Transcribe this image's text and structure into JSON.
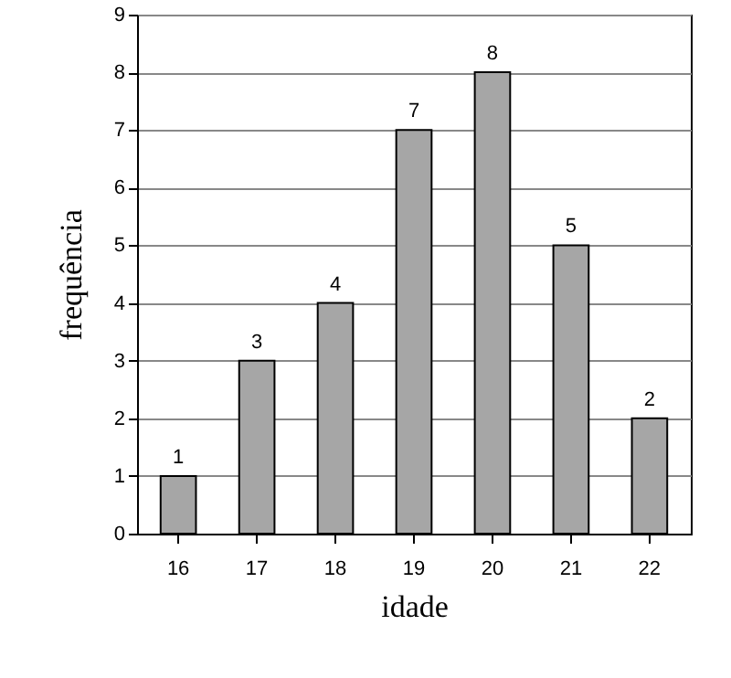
{
  "chart_data": {
    "type": "bar",
    "xlabel": "idade",
    "ylabel": "frequência",
    "categories": [
      "16",
      "17",
      "18",
      "19",
      "20",
      "21",
      "22"
    ],
    "values": [
      1,
      3,
      4,
      7,
      8,
      5,
      2
    ],
    "color": "#a6a6a6",
    "ylim": [
      0,
      9
    ],
    "yticks": [
      0,
      1,
      2,
      3,
      4,
      5,
      6,
      7,
      8,
      9
    ],
    "grid": "y",
    "data_labels": true
  }
}
